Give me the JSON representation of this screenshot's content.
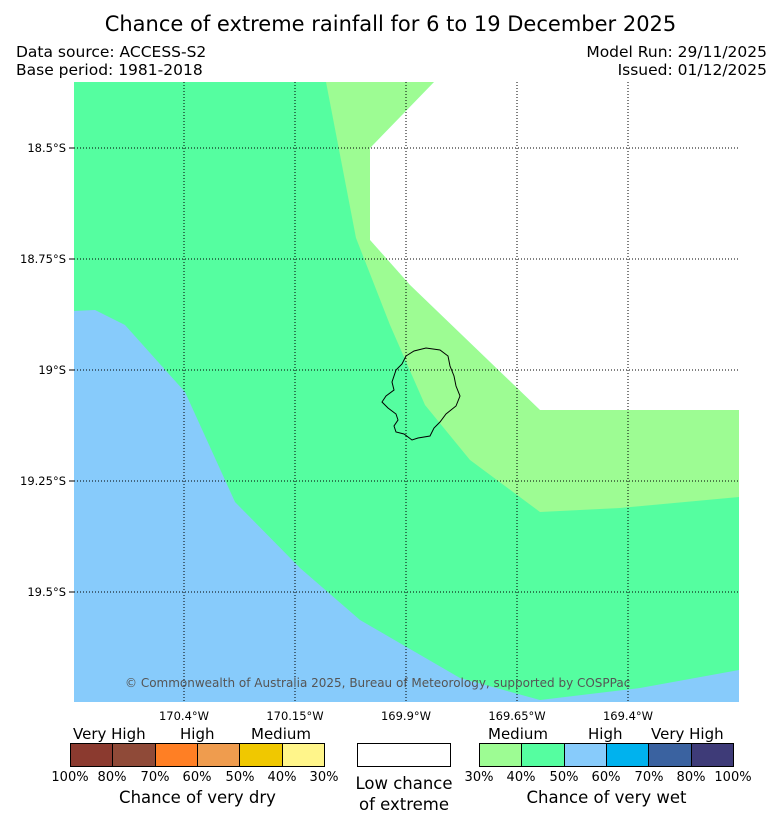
{
  "header": {
    "title": "Chance of extreme rainfall for 6 to 19 December 2025",
    "data_source": "Data source: ACCESS-S2",
    "base_period": "Base period: 1981-2018",
    "model_run": "Model Run: 29/11/2025",
    "issued": "Issued: 01/12/2025"
  },
  "map": {
    "latitude_labels": [
      "18.5°S",
      "18.75°S",
      "19°S",
      "19.25°S",
      "19.5°S"
    ],
    "longitude_labels": [
      "170.4°W",
      "170.15°W",
      "169.9°W",
      "169.65°W",
      "169.4°W"
    ],
    "copyright": "© Commonwealth of Australia 2025, Bureau of Meteorology, supported by COSPPac",
    "colors": {
      "high_wet": "#87cbfb",
      "medium_wet_40": "#55fea0",
      "medium_wet_30": "#9dfc93",
      "low": "#ffffff",
      "gridline": "#000000"
    }
  },
  "legend": {
    "dry": {
      "categories": [
        "Very High",
        "High",
        "Medium"
      ],
      "percentages": [
        "100%",
        "80%",
        "70%",
        "60%",
        "50%",
        "40%",
        "30%"
      ],
      "colors": [
        "#8b3a2f",
        "#8f4a38",
        "#ff7f24",
        "#ef9c4e",
        "#f0c800",
        "#fff58a"
      ],
      "title": "Chance of very dry"
    },
    "low": {
      "title_line1": "Low chance",
      "title_line2": "of extreme",
      "color": "#ffffff"
    },
    "wet": {
      "categories": [
        "Medium",
        "High",
        "Very High"
      ],
      "percentages": [
        "30%",
        "40%",
        "50%",
        "60%",
        "70%",
        "80%",
        "100%"
      ],
      "colors": [
        "#9dfc93",
        "#55fea0",
        "#87cbfb",
        "#00b2ee",
        "#3a62a0",
        "#3e3b78"
      ],
      "title": "Chance of very wet"
    }
  }
}
